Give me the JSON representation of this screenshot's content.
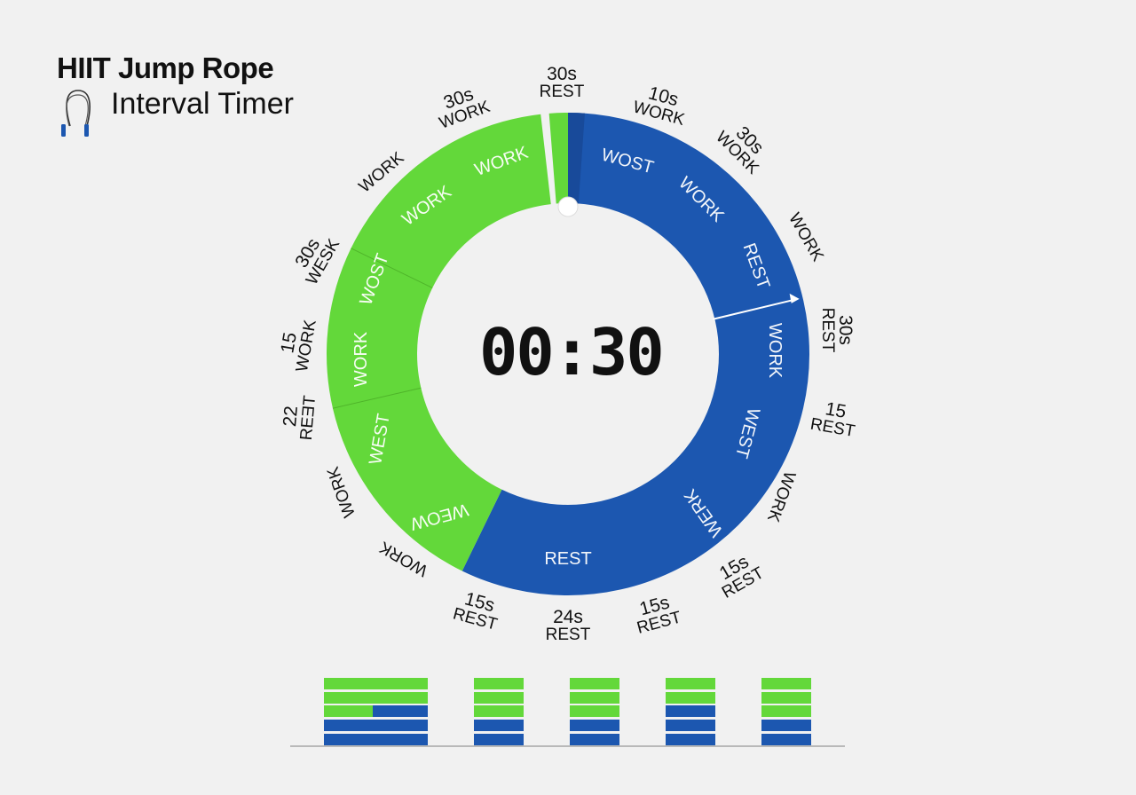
{
  "header": {
    "title": "HIIT Jump Rope",
    "subtitle": "Interval Timer",
    "icon": "jump-rope-icon"
  },
  "timer": {
    "display": "00:30"
  },
  "colors": {
    "work": "#63d83a",
    "rest": "#1c57b0",
    "rest_dark": "#184a9a",
    "background": "#f1f1f1"
  },
  "ring": {
    "inner_labels": [
      "WOST",
      "WORK",
      "REST",
      "WORK",
      "WEST",
      "WERK",
      "REST",
      "WEOW",
      "WEST",
      "WORK",
      "WOST",
      "WORK",
      "WORK"
    ],
    "outer_labels": [
      {
        "num": "30s",
        "word": "REST"
      },
      {
        "num": "10s",
        "word": "WORK"
      },
      {
        "num": "30s",
        "word": "WORK"
      },
      {
        "num": "",
        "word": "WORK"
      },
      {
        "num": "30s",
        "word": "REST"
      },
      {
        "num": "15",
        "word": "REST"
      },
      {
        "num": "",
        "word": "WORK"
      },
      {
        "num": "15s",
        "word": "REST"
      },
      {
        "num": "15s",
        "word": "REST"
      },
      {
        "num": "24s",
        "word": "REST"
      },
      {
        "num": "15s",
        "word": "REST"
      },
      {
        "num": "",
        "word": "WORK"
      },
      {
        "num": "",
        "word": "WORK"
      },
      {
        "num": "22",
        "word": "REƎT"
      },
      {
        "num": "15",
        "word": "WORK"
      },
      {
        "num": "30s",
        "word": "WESK"
      },
      {
        "num": "",
        "word": "WORK"
      },
      {
        "num": "30s",
        "word": "WORK"
      }
    ]
  },
  "rounds": [
    {
      "rows": [
        "work",
        "work",
        {
          "work_fraction": 0.47
        },
        "rest",
        "rest"
      ]
    },
    {
      "rows": [
        "work",
        "work",
        "work",
        "rest",
        "rest"
      ]
    },
    {
      "rows": [
        "work",
        "work",
        "work",
        "rest",
        "rest"
      ]
    },
    {
      "rows": [
        "work",
        "work",
        "rest",
        "rest",
        "rest"
      ]
    },
    {
      "rows": [
        "work",
        "work",
        "work",
        "rest",
        "rest"
      ]
    }
  ]
}
